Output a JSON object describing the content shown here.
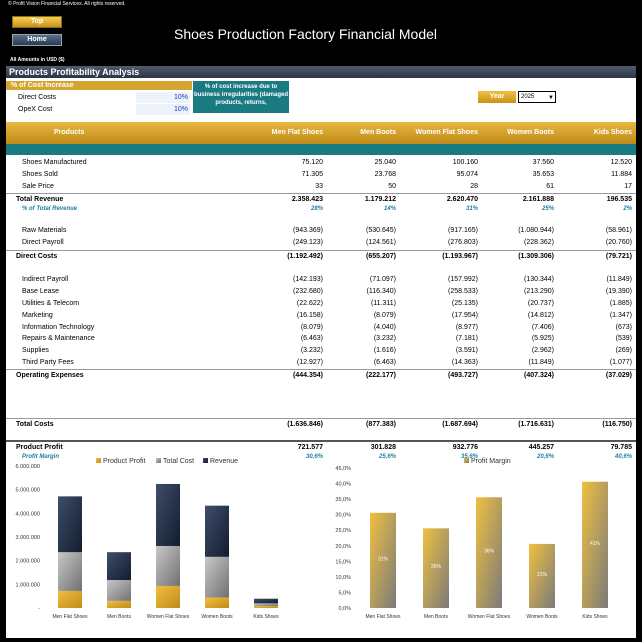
{
  "copyright": "© Profit Vision Financial Services. All rights reserved.",
  "nav": {
    "top_label": "Top",
    "home_label": "Home"
  },
  "title": "Shoes Production Factory Financial Model",
  "amounts_note": "All Amounts in  USD ($)",
  "section_title": "Products Profitability Analysis",
  "cost_increase": {
    "header": "% of Cost Increase",
    "rows": [
      {
        "label": "Direct Costs",
        "value": "10%"
      },
      {
        "label": "OpeX Cost",
        "value": "10%"
      }
    ],
    "note": "% of cost increase due to business irregularities (damaged products, returns,"
  },
  "year": {
    "label": "Year",
    "value": "2025",
    "arrow": "▼"
  },
  "columns": [
    "Products",
    "Men Flat Shoes",
    "Men Boots",
    "Women Flat Shoes",
    "Women Boots",
    "Kids Shoes"
  ],
  "rows": [
    {
      "label": "Shoes Manufactured",
      "values": [
        "75.120",
        "25.040",
        "100.160",
        "37.560",
        "12.520"
      ],
      "style": ""
    },
    {
      "label": "Shoes Sold",
      "values": [
        "71.305",
        "23.768",
        "95.074",
        "35.653",
        "11.884"
      ],
      "style": ""
    },
    {
      "label": "Sale Price",
      "values": [
        "33",
        "50",
        "28",
        "61",
        "17"
      ],
      "style": ""
    },
    {
      "label": "Total Revenue",
      "values": [
        "2.358.423",
        "1.179.212",
        "2.620.470",
        "2.161.888",
        "196.535"
      ],
      "style": "bold line"
    },
    {
      "label": "% of Total Revenue",
      "values": [
        "28%",
        "14%",
        "31%",
        "25%",
        "2%"
      ],
      "style": "pct"
    },
    {
      "label": "Raw Materials",
      "values": [
        "(943.369)",
        "(530.645)",
        "(917.165)",
        "(1.080.944)",
        "(58.961)"
      ],
      "style": ""
    },
    {
      "label": "Direct Payroll",
      "values": [
        "(249.123)",
        "(124.561)",
        "(276.803)",
        "(228.362)",
        "(20.760)"
      ],
      "style": ""
    },
    {
      "label": "Direct Costs",
      "values": [
        "(1.192.492)",
        "(655.207)",
        "(1.193.967)",
        "(1.309.306)",
        "(79.721)"
      ],
      "style": "bold line"
    },
    {
      "label": "Indirect Payroll",
      "values": [
        "(142.193)",
        "(71.097)",
        "(157.992)",
        "(130.344)",
        "(11.849)"
      ],
      "style": ""
    },
    {
      "label": "Base Lease",
      "values": [
        "(232.680)",
        "(116.340)",
        "(258.533)",
        "(213.290)",
        "(19.390)"
      ],
      "style": ""
    },
    {
      "label": "Utilities & Telecom",
      "values": [
        "(22.622)",
        "(11.311)",
        "(25.135)",
        "(20.737)",
        "(1.885)"
      ],
      "style": ""
    },
    {
      "label": "Marketing",
      "values": [
        "(16.158)",
        "(8.079)",
        "(17.954)",
        "(14.812)",
        "(1.347)"
      ],
      "style": ""
    },
    {
      "label": "Information Technology",
      "values": [
        "(8.079)",
        "(4.040)",
        "(8.977)",
        "(7.406)",
        "(673)"
      ],
      "style": ""
    },
    {
      "label": "Repairs & Maintenance",
      "values": [
        "(6.463)",
        "(3.232)",
        "(7.181)",
        "(5.925)",
        "(539)"
      ],
      "style": ""
    },
    {
      "label": "Supplies",
      "values": [
        "(3.232)",
        "(1.616)",
        "(3.591)",
        "(2.962)",
        "(269)"
      ],
      "style": ""
    },
    {
      "label": "Third Party Fees",
      "values": [
        "(12.927)",
        "(6.463)",
        "(14.363)",
        "(11.849)",
        "(1.077)"
      ],
      "style": ""
    },
    {
      "label": "Operating Expenses",
      "values": [
        "(444.354)",
        "(222.177)",
        "(493.727)",
        "(407.324)",
        "(37.029)"
      ],
      "style": "bold line"
    },
    {
      "label": "Total Costs",
      "values": [
        "(1.636.846)",
        "(877.383)",
        "(1.687.694)",
        "(1.716.631)",
        "(116.750)"
      ],
      "style": "bold line"
    },
    {
      "label": "Product Profit",
      "values": [
        "721.577",
        "301.828",
        "932.776",
        "445.257",
        "79.785"
      ],
      "style": "bold line2"
    },
    {
      "label": "Profit Margin",
      "values": [
        "30,6%",
        "25,6%",
        "35,6%",
        "20,6%",
        "40,6%"
      ],
      "style": "pct"
    }
  ],
  "colors": {
    "gold": "#d9a520",
    "gray": "#8c8c8c",
    "navy": "#1f2b44",
    "teal": "#1a7a82"
  },
  "chart_data": [
    {
      "type": "bar",
      "stacked": true,
      "categories": [
        "Men Flat Shoes",
        "Men Boots",
        "Women Flat Shoes",
        "Women Boots",
        "Kids Shoes"
      ],
      "series": [
        {
          "name": "Product Profit",
          "values": [
            721577,
            301828,
            932776,
            445257,
            79785
          ]
        },
        {
          "name": "Total Cost",
          "values": [
            1636846,
            877383,
            1687694,
            1716631,
            116750
          ]
        },
        {
          "name": "Revenue",
          "values": [
            2358423,
            1179212,
            2620470,
            2161888,
            196535
          ]
        }
      ],
      "ylim": [
        0,
        6000000
      ],
      "yticks": [
        "-",
        "1.000.000",
        "2.000.000",
        "3.000.000",
        "4.000.000",
        "5.000.000",
        "6.000.000"
      ],
      "legend": "top"
    },
    {
      "type": "bar",
      "categories": [
        "Men Flat Shoes",
        "Men Boots",
        "Women Flat Shoes",
        "Women Boots",
        "Kids Shoes"
      ],
      "series": [
        {
          "name": "Profit Margin",
          "values": [
            30.6,
            25.6,
            35.6,
            20.6,
            40.6
          ],
          "labels": [
            "31%",
            "26%",
            "36%",
            "21%",
            "41%"
          ]
        }
      ],
      "ylim": [
        0,
        45
      ],
      "yticks": [
        "0,0%",
        "5,0%",
        "10,0%",
        "15,0%",
        "20,0%",
        "25,0%",
        "30,0%",
        "35,0%",
        "40,0%",
        "45,0%"
      ],
      "legend": "top"
    }
  ]
}
